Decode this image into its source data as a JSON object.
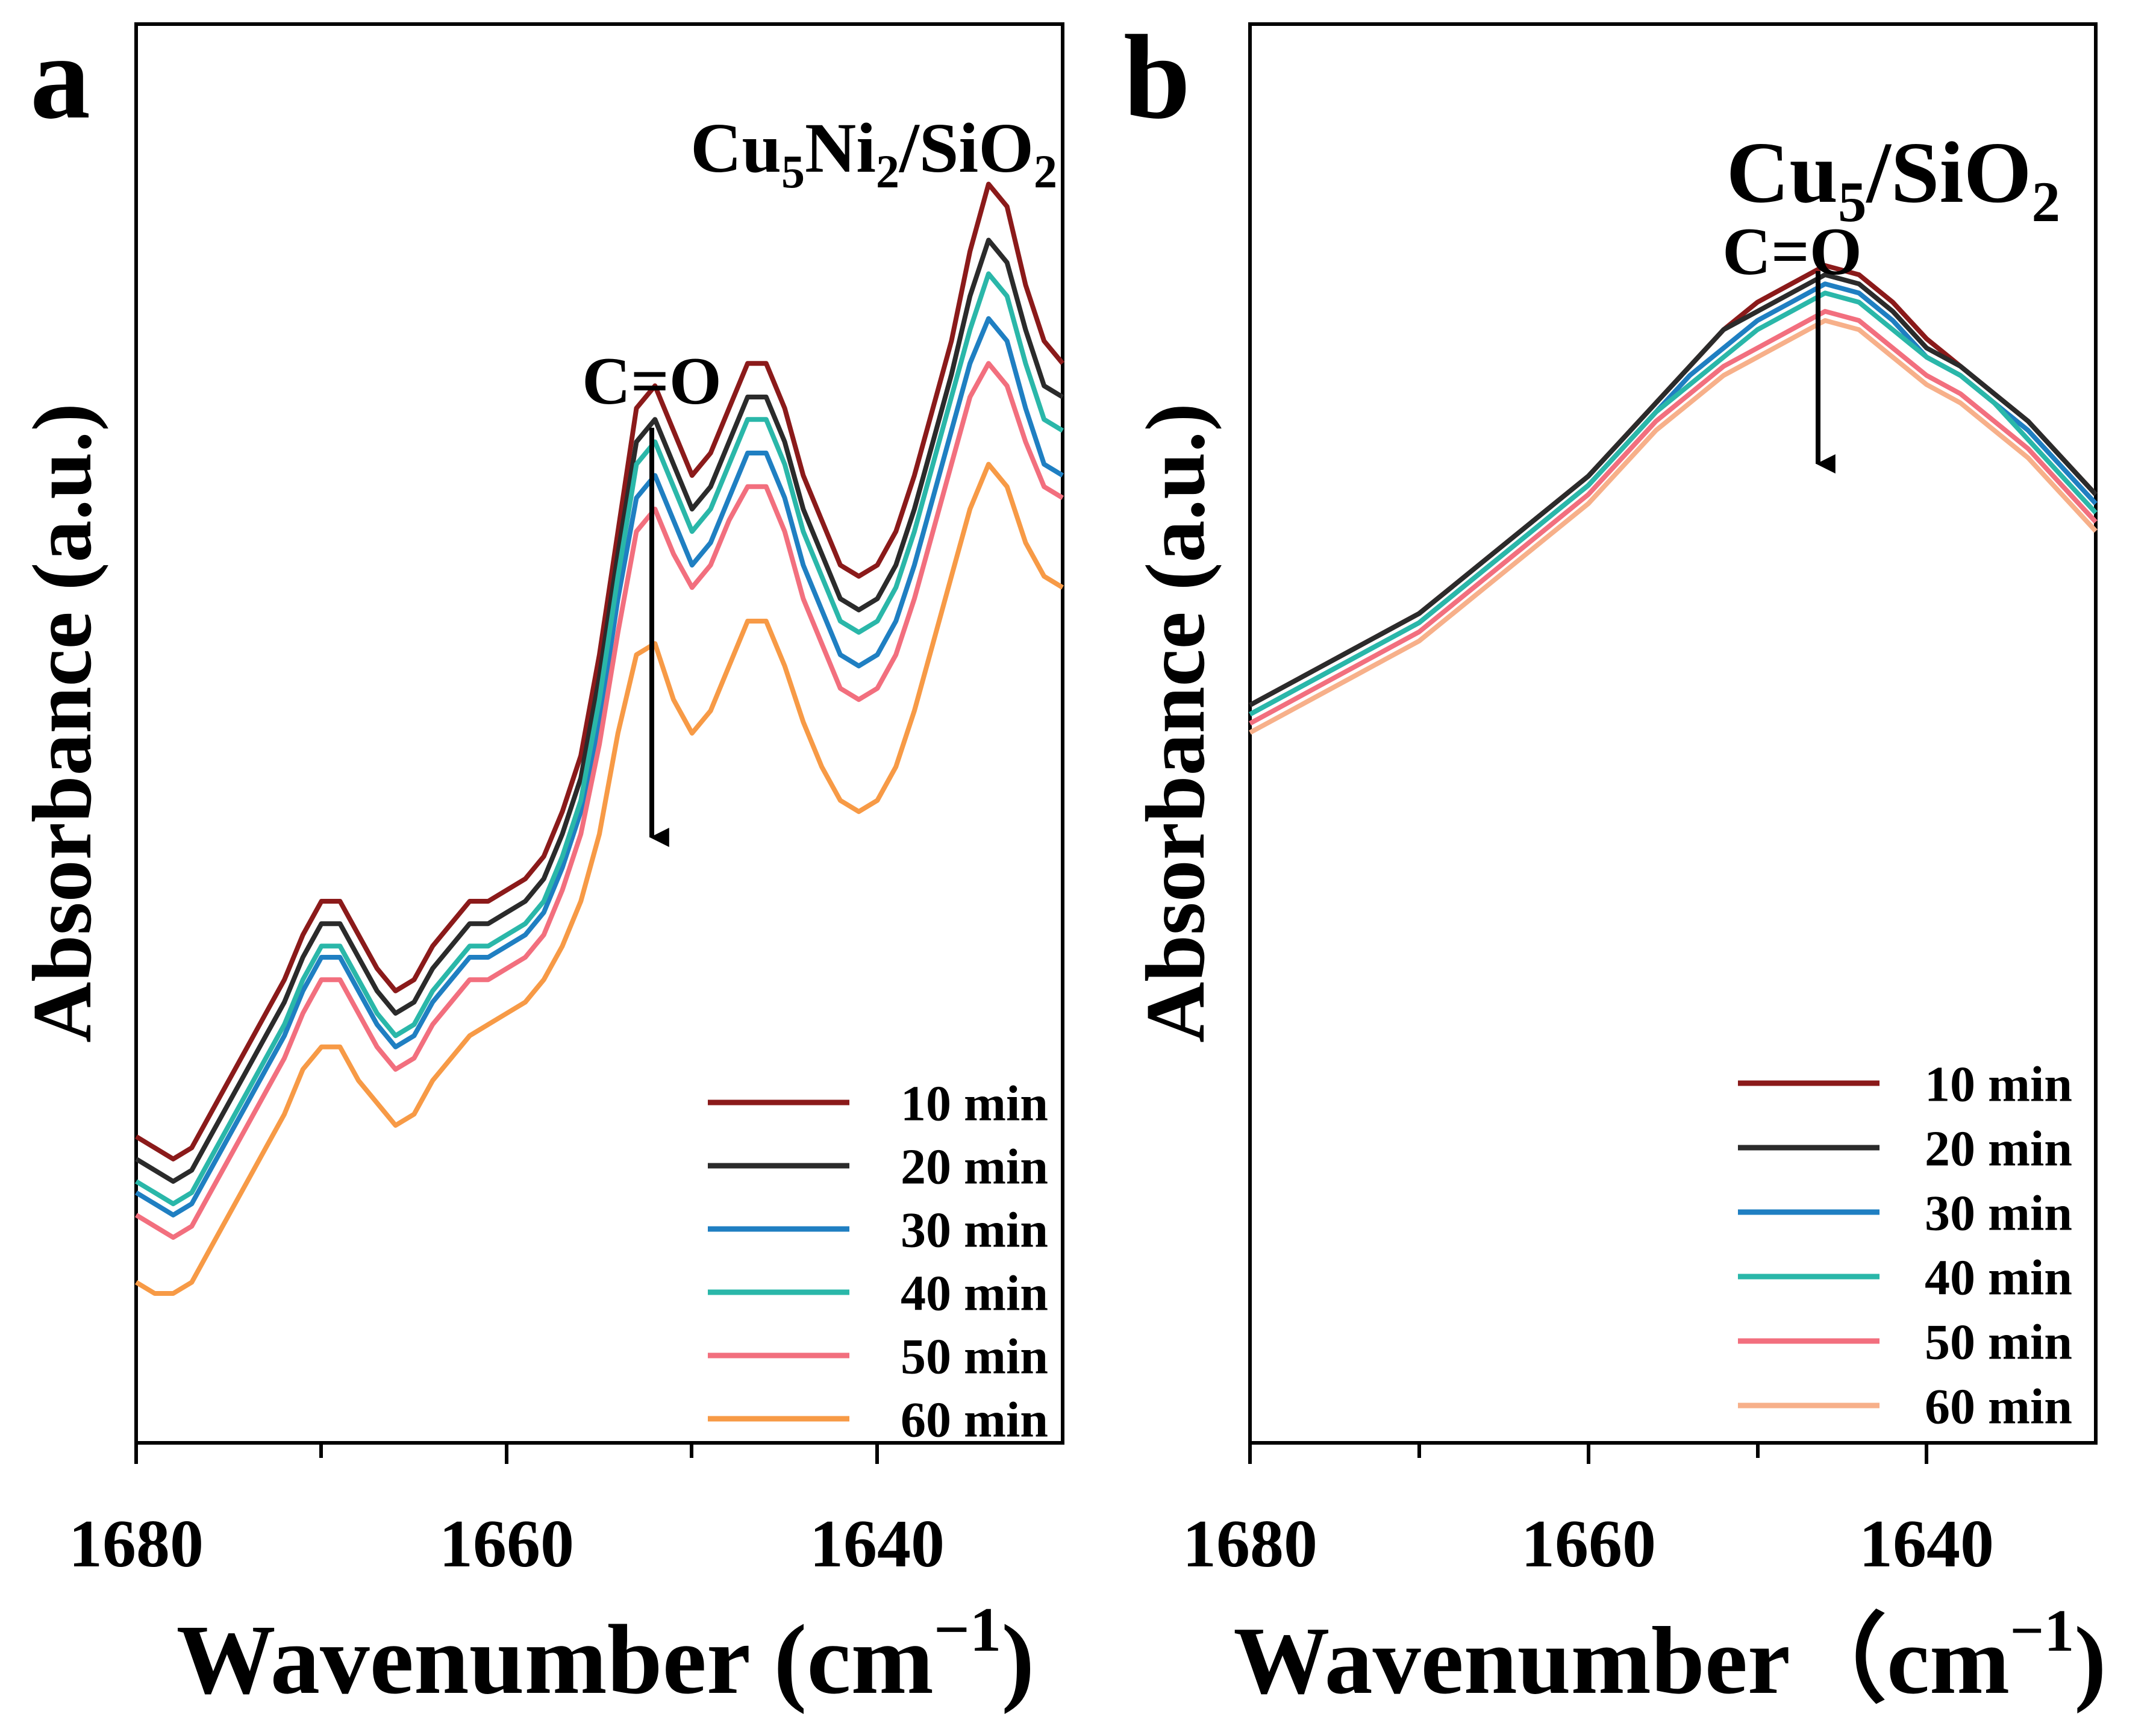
{
  "panels": [
    {
      "letter": "a",
      "sample_label": {
        "base": "Cu",
        "sub1": "5",
        "mid": "Ni",
        "sub2": "2",
        "tail": "/SiO",
        "sub3": "2"
      },
      "annotation": "C=O",
      "arrow_direction": "down",
      "ylabel": "Absorbance (a.u.)",
      "xlabel": "Wavenumber (cm",
      "xlabel_sup": "−1",
      "xlabel_close": ")",
      "xticks": [
        "1680",
        "1660",
        "1640"
      ]
    },
    {
      "letter": "b",
      "sample_label": {
        "base": "Cu",
        "sub1": "5",
        "mid": "",
        "sub2": "",
        "tail": "/SiO",
        "sub3": "2"
      },
      "annotation": "C=O",
      "arrow_direction": "down",
      "ylabel": "Absorbance (a.u.)",
      "xlabel": "Wavenumber（cm",
      "xlabel_sup": "−1",
      "xlabel_close": ")",
      "xticks": [
        "1680",
        "1660",
        "1640"
      ]
    }
  ],
  "chart_data": [
    {
      "type": "line",
      "panel": "a",
      "title": "Cu5Ni2/SiO2",
      "xlabel": "Wavenumber (cm−1)",
      "ylabel": "Absorbance (a.u.)",
      "xlim": [
        1680,
        1630
      ],
      "ylim": [
        0,
        100
      ],
      "xticks": [
        1680,
        1660,
        1640
      ],
      "x": [
        1680,
        1679,
        1678,
        1677,
        1676,
        1675,
        1674,
        1673,
        1672,
        1671,
        1670,
        1669,
        1668,
        1667,
        1666,
        1665,
        1664,
        1663,
        1662,
        1661,
        1660,
        1659,
        1658,
        1657,
        1656,
        1655,
        1654,
        1653,
        1652,
        1651,
        1650,
        1649,
        1648,
        1647,
        1646,
        1645,
        1644,
        1643,
        1642,
        1641,
        1640,
        1639,
        1638,
        1637,
        1636,
        1635,
        1634,
        1633,
        1632,
        1631,
        1630
      ],
      "annotation": {
        "text": "C=O",
        "x": 1652,
        "direction": "down"
      },
      "legend_position": "bottom-right",
      "series": [
        {
          "name": "10 min",
          "color": "#8b1a1a",
          "values": [
            19,
            18,
            17,
            18,
            21,
            24,
            27,
            30,
            33,
            37,
            40,
            40,
            37,
            34,
            32,
            33,
            36,
            38,
            40,
            40,
            41,
            42,
            44,
            48,
            53,
            62,
            73,
            84,
            86,
            82,
            78,
            80,
            84,
            88,
            88,
            84,
            78,
            74,
            70,
            69,
            70,
            73,
            78,
            84,
            90,
            98,
            104,
            102,
            95,
            90,
            88
          ]
        },
        {
          "name": "20 min",
          "color": "#2b2b2b",
          "values": [
            17,
            16,
            15,
            16,
            19,
            22,
            25,
            28,
            31,
            35,
            38,
            38,
            35,
            32,
            30,
            31,
            34,
            36,
            38,
            38,
            39,
            40,
            42,
            46,
            51,
            60,
            71,
            81,
            83,
            79,
            75,
            77,
            81,
            85,
            85,
            81,
            75,
            71,
            67,
            66,
            67,
            70,
            75,
            81,
            87,
            94,
            99,
            97,
            91,
            86,
            85
          ]
        },
        {
          "name": "30 min",
          "color": "#1f7fc2",
          "values": [
            14,
            13,
            12,
            13,
            16,
            19,
            22,
            25,
            28,
            32,
            35,
            35,
            32,
            29,
            27,
            28,
            31,
            33,
            35,
            35,
            36,
            37,
            39,
            43,
            48,
            56,
            67,
            76,
            78,
            74,
            70,
            72,
            76,
            80,
            80,
            76,
            70,
            66,
            62,
            61,
            62,
            65,
            70,
            76,
            82,
            88,
            92,
            90,
            84,
            79,
            78
          ]
        },
        {
          "name": "40 min",
          "color": "#2ab7a9",
          "values": [
            15,
            14,
            13,
            14,
            17,
            20,
            23,
            26,
            29,
            33,
            36,
            36,
            33,
            30,
            28,
            29,
            32,
            34,
            36,
            36,
            37,
            38,
            40,
            44,
            49,
            58,
            69,
            79,
            81,
            77,
            73,
            75,
            79,
            83,
            83,
            79,
            73,
            69,
            65,
            64,
            65,
            68,
            73,
            79,
            85,
            91,
            96,
            94,
            88,
            83,
            82
          ]
        },
        {
          "name": "50 min",
          "color": "#f26f7e",
          "values": [
            12,
            11,
            10,
            11,
            14,
            17,
            20,
            23,
            26,
            30,
            33,
            33,
            30,
            27,
            25,
            26,
            29,
            31,
            33,
            33,
            34,
            35,
            37,
            41,
            46,
            54,
            64,
            73,
            75,
            71,
            68,
            70,
            74,
            77,
            77,
            73,
            67,
            63,
            59,
            58,
            59,
            62,
            67,
            73,
            79,
            85,
            88,
            86,
            81,
            77,
            76
          ]
        },
        {
          "name": "60 min",
          "color": "#f79a46",
          "values": [
            6,
            5,
            5,
            6,
            9,
            12,
            15,
            18,
            21,
            25,
            27,
            27,
            24,
            22,
            20,
            21,
            24,
            26,
            28,
            29,
            30,
            31,
            33,
            36,
            40,
            46,
            55,
            62,
            63,
            58,
            55,
            57,
            61,
            65,
            65,
            61,
            56,
            52,
            49,
            48,
            49,
            52,
            57,
            63,
            69,
            75,
            79,
            77,
            72,
            69,
            68
          ]
        }
      ]
    },
    {
      "type": "line",
      "panel": "b",
      "title": "Cu5/SiO2",
      "xlabel": "Wavenumber（cm−1)",
      "ylabel": "Absorbance (a.u.)",
      "xlim": [
        1680,
        1630
      ],
      "ylim": [
        0,
        100
      ],
      "xticks": [
        1680,
        1660,
        1640
      ],
      "x": [
        1680,
        1678,
        1676,
        1674,
        1672,
        1670,
        1668,
        1666,
        1664,
        1662,
        1660,
        1658,
        1656,
        1654,
        1652,
        1650,
        1648,
        1646,
        1644,
        1642,
        1640,
        1638,
        1636,
        1634,
        1632,
        1630
      ],
      "annotation": {
        "text": "C=O",
        "x": 1646,
        "direction": "down"
      },
      "legend_position": "bottom-right",
      "series": [
        {
          "name": "10 min",
          "color": "#8b1a1a",
          "values": [
            48,
            50,
            52,
            54,
            56,
            58,
            61,
            64,
            67,
            70,
            73,
            77,
            81,
            85,
            89,
            92,
            94,
            96,
            95,
            92,
            88,
            85,
            82,
            79,
            75,
            71
          ]
        },
        {
          "name": "20 min",
          "color": "#2b2b2b",
          "values": [
            48,
            50,
            52,
            54,
            56,
            58,
            61,
            64,
            67,
            70,
            73,
            77,
            81,
            85,
            89,
            91,
            93,
            95,
            94,
            91,
            87,
            85,
            82,
            79,
            75,
            71
          ]
        },
        {
          "name": "30 min",
          "color": "#1f7fc2",
          "values": [
            47,
            49,
            51,
            53,
            55,
            57,
            60,
            63,
            66,
            69,
            72,
            76,
            80,
            84,
            87,
            90,
            92,
            94,
            93,
            90,
            86,
            84,
            81,
            78,
            74,
            70
          ]
        },
        {
          "name": "40 min",
          "color": "#2ab7a9",
          "values": [
            47,
            49,
            51,
            53,
            55,
            57,
            60,
            63,
            66,
            69,
            72,
            76,
            80,
            83,
            86,
            89,
            91,
            93,
            92,
            89,
            86,
            84,
            81,
            77,
            73,
            69
          ]
        },
        {
          "name": "50 min",
          "color": "#f26f7e",
          "values": [
            46,
            48,
            50,
            52,
            54,
            56,
            59,
            62,
            65,
            68,
            71,
            75,
            79,
            82,
            85,
            87,
            89,
            91,
            90,
            87,
            84,
            82,
            79,
            76,
            72,
            68
          ]
        },
        {
          "name": "60 min",
          "color": "#f7b08a",
          "values": [
            45,
            47,
            49,
            51,
            53,
            55,
            58,
            61,
            64,
            67,
            70,
            74,
            78,
            81,
            84,
            86,
            88,
            90,
            89,
            86,
            83,
            81,
            78,
            75,
            71,
            67
          ]
        }
      ]
    }
  ]
}
